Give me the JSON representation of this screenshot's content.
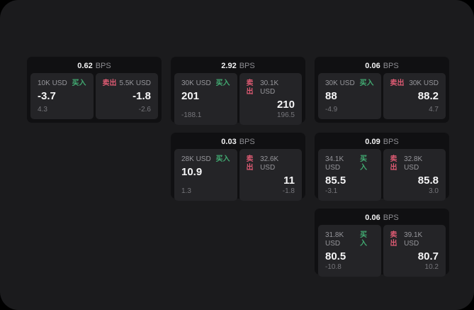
{
  "colors": {
    "outer_background": "#000000",
    "surface_background": "#1b1b1d",
    "card_background": "#101012",
    "panel_background": "#242427",
    "buy_accent": "#42ab72",
    "sell_accent": "#dc5a72",
    "primary_text": "#f5f5f6",
    "muted_text": "#96969b",
    "dim_text": "#76767b"
  },
  "labels": {
    "bps": "BPS",
    "buy": "买入",
    "sell": "卖出"
  },
  "cards": [
    {
      "grid": {
        "row": 1,
        "col": 1
      },
      "bps": "0.62",
      "buy": {
        "amount": "10K USD",
        "value": "-3.7",
        "delta": "4.3"
      },
      "sell": {
        "amount": "5.5K USD",
        "value": "-1.8",
        "delta": "-2.6"
      }
    },
    {
      "grid": {
        "row": 1,
        "col": 2
      },
      "bps": "2.92",
      "buy": {
        "amount": "30K USD",
        "value": "201",
        "delta": "-188.1"
      },
      "sell": {
        "amount": "30.1K USD",
        "value": "210",
        "delta": "196.5"
      }
    },
    {
      "grid": {
        "row": 1,
        "col": 3
      },
      "bps": "0.06",
      "buy": {
        "amount": "30K USD",
        "value": "88",
        "delta": "-4.9"
      },
      "sell": {
        "amount": "30K USD",
        "value": "88.2",
        "delta": "4.7"
      }
    },
    {
      "grid": {
        "row": 2,
        "col": 2
      },
      "bps": "0.03",
      "buy": {
        "amount": "28K USD",
        "value": "10.9",
        "delta": "1.3"
      },
      "sell": {
        "amount": "32.6K USD",
        "value": "11",
        "delta": "-1.8"
      }
    },
    {
      "grid": {
        "row": 2,
        "col": 3
      },
      "bps": "0.09",
      "buy": {
        "amount": "34.1K USD",
        "value": "85.5",
        "delta": "-3.1"
      },
      "sell": {
        "amount": "32.8K USD",
        "value": "85.8",
        "delta": "3.0"
      }
    },
    {
      "grid": {
        "row": 3,
        "col": 3
      },
      "bps": "0.06",
      "buy": {
        "amount": "31.8K USD",
        "value": "80.5",
        "delta": "-10.8"
      },
      "sell": {
        "amount": "39.1K USD",
        "value": "80.7",
        "delta": "10.2"
      }
    }
  ]
}
